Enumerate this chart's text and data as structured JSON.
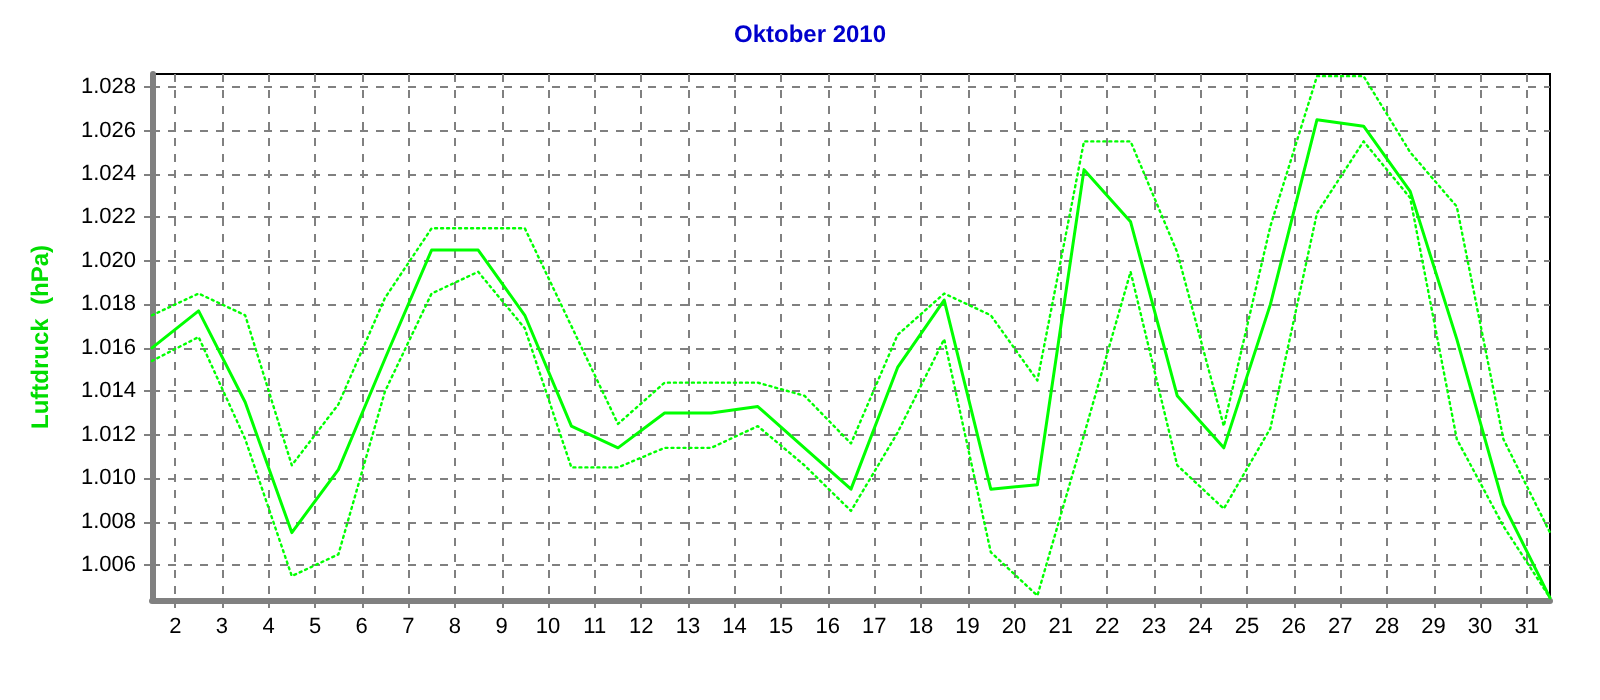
{
  "chart_data": {
    "type": "line",
    "title": "Oktober 2010",
    "ylabel": "Luftdruck  (hPa)",
    "x": [
      1.5,
      2.5,
      3.5,
      4.5,
      5.5,
      6.5,
      7.5,
      8.5,
      9.5,
      10.5,
      11.5,
      12.5,
      13.5,
      14.5,
      15.5,
      16.5,
      17.5,
      18.5,
      19.5,
      20.5,
      21.5,
      22.5,
      23.5,
      24.5,
      25.5,
      26.5,
      27.5,
      28.5,
      29.5,
      30.5,
      31.5
    ],
    "series": [
      {
        "color": "#00ff00",
        "line_style": "dotted",
        "values": [
          1.0175,
          1.0185,
          1.0175,
          1.0106,
          1.0134,
          1.0183,
          1.0215,
          1.0215,
          1.0215,
          1.017,
          1.0125,
          1.0144,
          1.0144,
          1.0144,
          1.0138,
          1.0116,
          1.0166,
          1.0185,
          1.0175,
          1.0145,
          1.0255,
          1.0255,
          1.0204,
          1.0124,
          1.0216,
          1.0285,
          1.0285,
          1.025,
          1.0225,
          1.0118,
          1.0075
        ]
      },
      {
        "color": "#00ff00",
        "line_style": "solid",
        "values": [
          1.016,
          1.0177,
          1.0135,
          1.0075,
          1.0104,
          1.0155,
          1.0205,
          1.0205,
          1.0175,
          1.0124,
          1.0114,
          1.013,
          1.013,
          1.0133,
          1.0114,
          1.0095,
          1.0151,
          1.0182,
          1.0095,
          1.0097,
          1.0242,
          1.0218,
          1.0138,
          1.0114,
          1.018,
          1.0265,
          1.0262,
          1.0232,
          1.0164,
          1.0088,
          1.0045
        ]
      },
      {
        "color": "#00ff00",
        "line_style": "dotted",
        "values": [
          1.0154,
          1.0165,
          1.0118,
          1.0055,
          1.0065,
          1.014,
          1.0185,
          1.0195,
          1.0169,
          1.0105,
          1.0105,
          1.0114,
          1.0114,
          1.0124,
          1.0106,
          1.0085,
          1.0121,
          1.0164,
          1.0066,
          1.0046,
          1.012,
          1.0195,
          1.0106,
          1.0086,
          1.0123,
          1.0222,
          1.0255,
          1.0229,
          1.0118,
          1.0078,
          1.0045
        ]
      }
    ],
    "xlim": [
      1.5,
      31.5
    ],
    "xticks": [
      2,
      3,
      4,
      5,
      6,
      7,
      8,
      9,
      10,
      11,
      12,
      13,
      14,
      15,
      16,
      17,
      18,
      19,
      20,
      21,
      22,
      23,
      24,
      25,
      26,
      27,
      28,
      29,
      30,
      31
    ],
    "ylim": [
      1.0044,
      1.0286
    ],
    "yticks": [
      1.006,
      1.008,
      {
        "value": 1.01,
        "label": "1.010"
      },
      1.012,
      1.014,
      1.016,
      1.018,
      {
        "value": 1.02,
        "label": "1.020"
      },
      1.022,
      1.024,
      1.026,
      1.028
    ],
    "grid": true,
    "marker": "none"
  }
}
